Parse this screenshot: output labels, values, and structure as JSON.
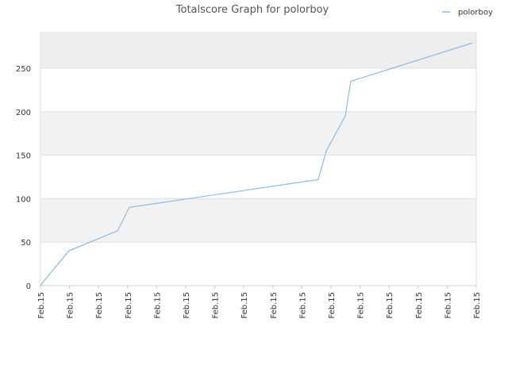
{
  "chart_data": {
    "type": "line",
    "title": "Totalscore Graph for polorboy",
    "x": [
      0,
      0.11,
      0.98,
      2.65,
      3.06,
      9.56,
      9.84,
      10.49,
      10.68,
      14.86
    ],
    "series": [
      {
        "name": "polorboy",
        "color": "#88bbee",
        "values": [
          0,
          5,
          40,
          63,
          90,
          122,
          155,
          195,
          235,
          279
        ]
      }
    ],
    "xlim": [
      0,
      15
    ],
    "xticks": [
      {
        "value": 0,
        "label": "Feb.15"
      },
      {
        "value": 1,
        "label": "Feb.15"
      },
      {
        "value": 2,
        "label": "Feb.15"
      },
      {
        "value": 3,
        "label": "Feb.15"
      },
      {
        "value": 4,
        "label": "Feb.15"
      },
      {
        "value": 5,
        "label": "Feb.15"
      },
      {
        "value": 6,
        "label": "Feb.15"
      },
      {
        "value": 7,
        "label": "Feb.15"
      },
      {
        "value": 8,
        "label": "Feb.15"
      },
      {
        "value": 9,
        "label": "Feb.15"
      },
      {
        "value": 10,
        "label": "Feb.15"
      },
      {
        "value": 11,
        "label": "Feb.15"
      },
      {
        "value": 12,
        "label": "Feb.15"
      },
      {
        "value": 13,
        "label": "Feb.15"
      },
      {
        "value": 14,
        "label": "Feb.15"
      },
      {
        "value": 15,
        "label": "Feb.15"
      }
    ],
    "ylim": [
      0,
      292
    ],
    "yticks": [
      0,
      50,
      100,
      150,
      200,
      250
    ],
    "grid": true,
    "legend": "top-right"
  }
}
